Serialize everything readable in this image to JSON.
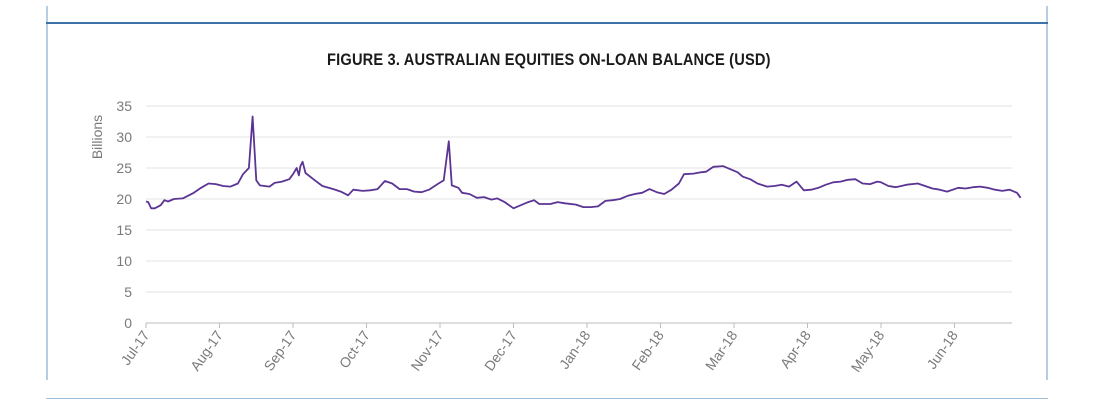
{
  "chart_data": {
    "type": "line",
    "title": "FIGURE 3. AUSTRALIAN EQUITIES ON-LOAN BALANCE (USD)",
    "xlabel": "",
    "ylabel": "Billions",
    "ylim": [
      0,
      35
    ],
    "yticks": [
      "0",
      "5",
      "10",
      "15",
      "20",
      "25",
      "30",
      "35"
    ],
    "xticks": [
      "Jul-17",
      "Aug-17",
      "Sep-17",
      "Oct-17",
      "Nov-17",
      "Dec-17",
      "Jan-18",
      "Feb-18",
      "Mar-18",
      "Apr-18",
      "May-18",
      "Jun-18"
    ],
    "grid": true,
    "legend": "none",
    "color": "#5b3494",
    "series": [
      {
        "values": [
          [
            0.0,
            19.6
          ],
          [
            0.03,
            19.5
          ],
          [
            0.07,
            18.5
          ],
          [
            0.12,
            18.5
          ],
          [
            0.2,
            19.0
          ],
          [
            0.25,
            19.8
          ],
          [
            0.3,
            19.6
          ],
          [
            0.38,
            20.0
          ],
          [
            0.5,
            20.1
          ],
          [
            0.65,
            21.0
          ],
          [
            0.75,
            21.8
          ],
          [
            0.85,
            22.5
          ],
          [
            0.95,
            22.4
          ],
          [
            1.05,
            22.1
          ],
          [
            1.15,
            22.0
          ],
          [
            1.25,
            22.5
          ],
          [
            1.32,
            24.0
          ],
          [
            1.4,
            25.0
          ],
          [
            1.45,
            33.3
          ],
          [
            1.5,
            23.0
          ],
          [
            1.55,
            22.2
          ],
          [
            1.68,
            22.0
          ],
          [
            1.75,
            22.6
          ],
          [
            1.85,
            22.8
          ],
          [
            1.95,
            23.2
          ],
          [
            2.0,
            24.0
          ],
          [
            2.05,
            25.0
          ],
          [
            2.08,
            23.8
          ],
          [
            2.1,
            25.3
          ],
          [
            2.13,
            26.0
          ],
          [
            2.17,
            24.2
          ],
          [
            2.3,
            23.0
          ],
          [
            2.4,
            22.1
          ],
          [
            2.55,
            21.6
          ],
          [
            2.65,
            21.2
          ],
          [
            2.75,
            20.6
          ],
          [
            2.82,
            21.5
          ],
          [
            2.95,
            21.3
          ],
          [
            3.05,
            21.4
          ],
          [
            3.15,
            21.6
          ],
          [
            3.25,
            22.9
          ],
          [
            3.35,
            22.5
          ],
          [
            3.45,
            21.6
          ],
          [
            3.55,
            21.6
          ],
          [
            3.65,
            21.2
          ],
          [
            3.75,
            21.1
          ],
          [
            3.85,
            21.5
          ],
          [
            3.98,
            22.5
          ],
          [
            4.05,
            23.0
          ],
          [
            4.12,
            29.3
          ],
          [
            4.16,
            22.2
          ],
          [
            4.25,
            21.8
          ],
          [
            4.3,
            21.0
          ],
          [
            4.4,
            20.8
          ],
          [
            4.5,
            20.2
          ],
          [
            4.6,
            20.3
          ],
          [
            4.7,
            19.9
          ],
          [
            4.78,
            20.1
          ],
          [
            4.88,
            19.5
          ],
          [
            5.0,
            18.5
          ],
          [
            5.1,
            19.0
          ],
          [
            5.2,
            19.5
          ],
          [
            5.28,
            19.8
          ],
          [
            5.35,
            19.2
          ],
          [
            5.5,
            19.2
          ],
          [
            5.6,
            19.5
          ],
          [
            5.7,
            19.3
          ],
          [
            5.85,
            19.1
          ],
          [
            5.95,
            18.7
          ],
          [
            6.05,
            18.7
          ],
          [
            6.15,
            18.8
          ],
          [
            6.25,
            19.7
          ],
          [
            6.35,
            19.8
          ],
          [
            6.45,
            20.0
          ],
          [
            6.55,
            20.5
          ],
          [
            6.65,
            20.8
          ],
          [
            6.75,
            21.0
          ],
          [
            6.85,
            21.6
          ],
          [
            6.95,
            21.1
          ],
          [
            7.05,
            20.8
          ],
          [
            7.15,
            21.5
          ],
          [
            7.25,
            22.5
          ],
          [
            7.32,
            24.0
          ],
          [
            7.45,
            24.1
          ],
          [
            7.55,
            24.3
          ],
          [
            7.62,
            24.4
          ],
          [
            7.72,
            25.2
          ],
          [
            7.85,
            25.3
          ],
          [
            7.95,
            24.8
          ],
          [
            8.05,
            24.3
          ],
          [
            8.12,
            23.6
          ],
          [
            8.22,
            23.2
          ],
          [
            8.32,
            22.5
          ],
          [
            8.45,
            22.0
          ],
          [
            8.55,
            22.1
          ],
          [
            8.65,
            22.3
          ],
          [
            8.75,
            22.0
          ],
          [
            8.85,
            22.8
          ],
          [
            8.95,
            21.4
          ],
          [
            9.05,
            21.5
          ],
          [
            9.15,
            21.8
          ],
          [
            9.25,
            22.3
          ],
          [
            9.35,
            22.7
          ],
          [
            9.45,
            22.8
          ],
          [
            9.55,
            23.1
          ],
          [
            9.65,
            23.2
          ],
          [
            9.75,
            22.5
          ],
          [
            9.85,
            22.4
          ],
          [
            9.95,
            22.8
          ],
          [
            10.0,
            22.7
          ],
          [
            10.1,
            22.1
          ],
          [
            10.2,
            21.9
          ],
          [
            10.35,
            22.3
          ],
          [
            10.5,
            22.5
          ],
          [
            10.6,
            22.1
          ],
          [
            10.7,
            21.7
          ],
          [
            10.8,
            21.5
          ],
          [
            10.9,
            21.2
          ],
          [
            11.05,
            21.8
          ],
          [
            11.15,
            21.7
          ],
          [
            11.25,
            21.9
          ],
          [
            11.35,
            22.0
          ],
          [
            11.45,
            21.8
          ],
          [
            11.55,
            21.5
          ],
          [
            11.65,
            21.3
          ],
          [
            11.75,
            21.5
          ],
          [
            11.85,
            21.0
          ],
          [
            11.9,
            20.2
          ]
        ]
      }
    ]
  }
}
